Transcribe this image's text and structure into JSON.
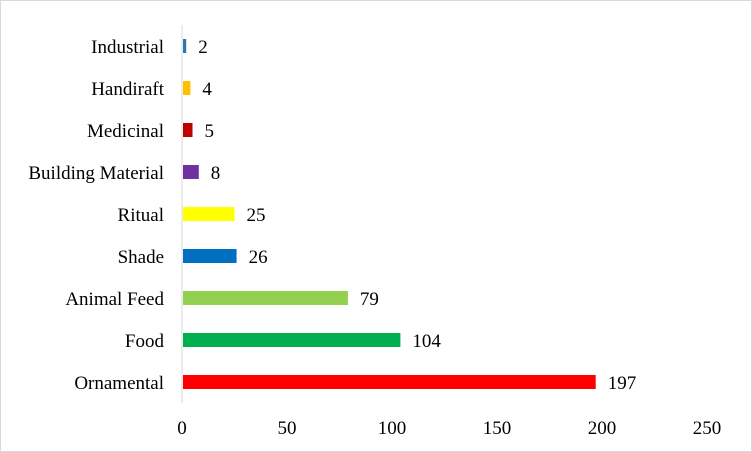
{
  "chart_data": {
    "type": "bar",
    "orientation": "horizontal",
    "title": "",
    "xlabel": "",
    "ylabel": "",
    "xlim": [
      0,
      250
    ],
    "x_ticks": [
      0,
      50,
      100,
      150,
      200,
      250
    ],
    "grid": false,
    "legend": "none",
    "data_labels": true,
    "categories": [
      "Ornamental",
      "Food",
      "Animal Feed",
      "Shade",
      "Ritual",
      "Building Material",
      "Medicinal",
      "Handiraft",
      "Industrial"
    ],
    "values": [
      197,
      104,
      79,
      26,
      25,
      8,
      5,
      4,
      2
    ],
    "colors": [
      "#ff0000",
      "#00b050",
      "#92d050",
      "#0070c0",
      "#ffff00",
      "#7030a0",
      "#c00000",
      "#ffc000",
      "#2e75b6"
    ]
  }
}
